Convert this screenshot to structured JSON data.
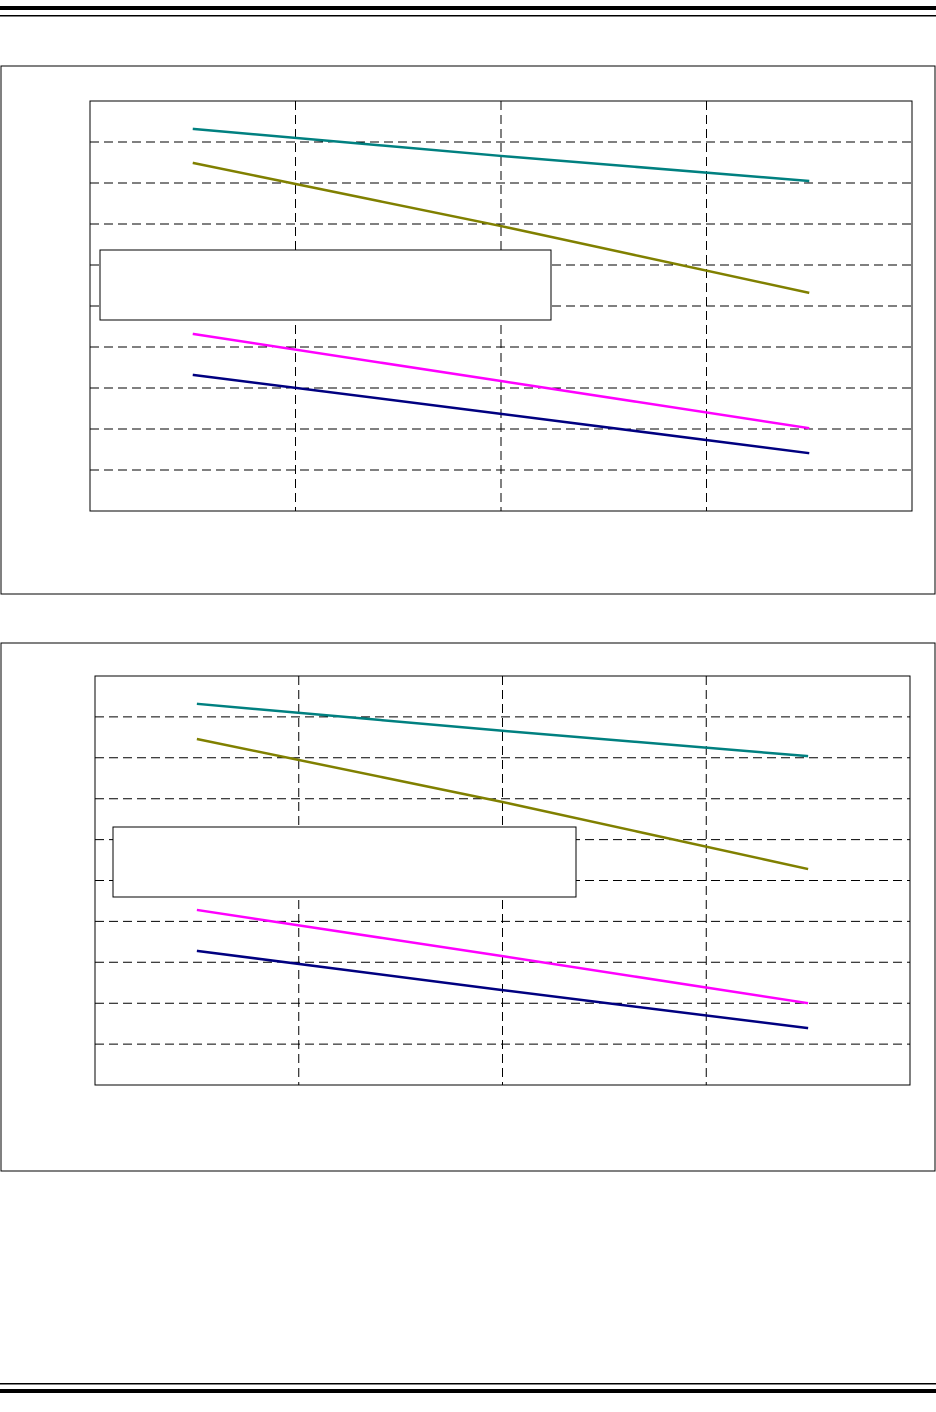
{
  "chart_data": [
    {
      "type": "line",
      "x": [
        0.5,
        2,
        3.5
      ],
      "xlim": [
        0,
        4
      ],
      "xticks": [
        0,
        1,
        2,
        3,
        4
      ],
      "ylim": [
        0,
        10
      ],
      "yticks": [
        0,
        1,
        2,
        3,
        4,
        5,
        6,
        7,
        8,
        9,
        10
      ],
      "grid": true,
      "tick_labels": false,
      "series": [
        {
          "color": "#008080",
          "values": [
            9.32,
            8.66,
            8.05
          ]
        },
        {
          "color": "#808000",
          "values": [
            8.49,
            6.95,
            5.32
          ]
        },
        {
          "color": "#ff00ff",
          "values": [
            4.32,
            3.17,
            2.02
          ]
        },
        {
          "color": "#000080",
          "values": [
            3.32,
            2.37,
            1.41
          ]
        }
      ]
    },
    {
      "type": "line",
      "x": [
        0.5,
        2,
        3.5
      ],
      "xlim": [
        0,
        4
      ],
      "xticks": [
        0,
        1,
        2,
        3,
        4
      ],
      "ylim": [
        0,
        10
      ],
      "yticks": [
        0,
        1,
        2,
        3,
        4,
        5,
        6,
        7,
        8,
        9,
        10
      ],
      "grid": true,
      "tick_labels": false,
      "series": [
        {
          "color": "#008080",
          "values": [
            9.32,
            8.66,
            8.04
          ]
        },
        {
          "color": "#808000",
          "values": [
            8.46,
            6.92,
            5.28
          ]
        },
        {
          "color": "#ff00ff",
          "values": [
            4.28,
            3.15,
            2.0
          ]
        },
        {
          "color": "#000080",
          "values": [
            3.28,
            2.32,
            1.39
          ]
        }
      ]
    }
  ]
}
